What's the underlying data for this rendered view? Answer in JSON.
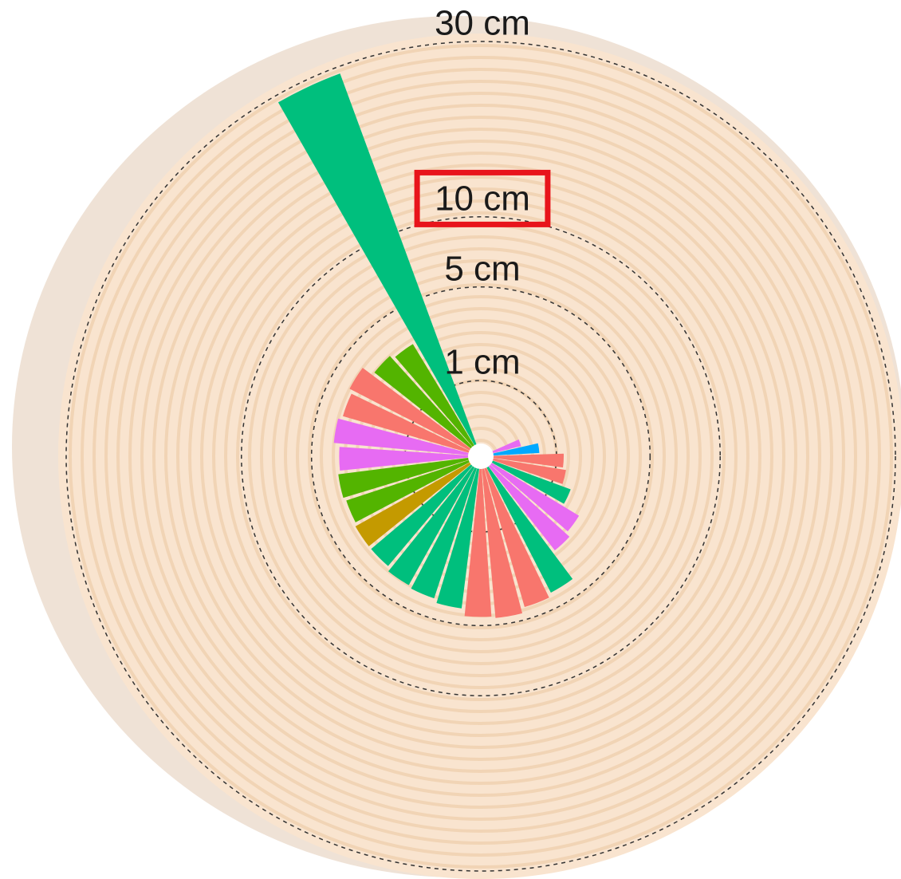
{
  "chart_data": {
    "type": "radial-bar",
    "rticks": [
      {
        "value": 1,
        "label": "1 cm"
      },
      {
        "value": 5,
        "label": "5 cm"
      },
      {
        "value": 10,
        "label": "10 cm"
      },
      {
        "value": 30,
        "label": "30 cm"
      }
    ],
    "rlim": [
      0,
      30
    ],
    "scale": "sqrt",
    "values": [
      29,
      3.0,
      3.2,
      3.8,
      3.6,
      3.8,
      3.5,
      3.6,
      3.5,
      3.6,
      3.6,
      3.8,
      3.9,
      4.1,
      4.5,
      4.6,
      4.3,
      4.1,
      2.5,
      2.3,
      1.6,
      1.3,
      1.2,
      0.6,
      0.3
    ],
    "colors": [
      "#00BF7D",
      "#53B400",
      "#53B400",
      "#F8766D",
      "#F8766D",
      "#E76BF3",
      "#E76BF3",
      "#53B400",
      "#53B400",
      "#C49A00",
      "#00BF7D",
      "#00BF7D",
      "#00BF7D",
      "#00BF7D",
      "#F8766D",
      "#F8766D",
      "#F8766D",
      "#00BF7D",
      "#E76BF3",
      "#E76BF3",
      "#00BF7D",
      "#F8766D",
      "#F8766D",
      "#00A9FF",
      "#E76BF3"
    ],
    "highlight_tick": 2
  }
}
